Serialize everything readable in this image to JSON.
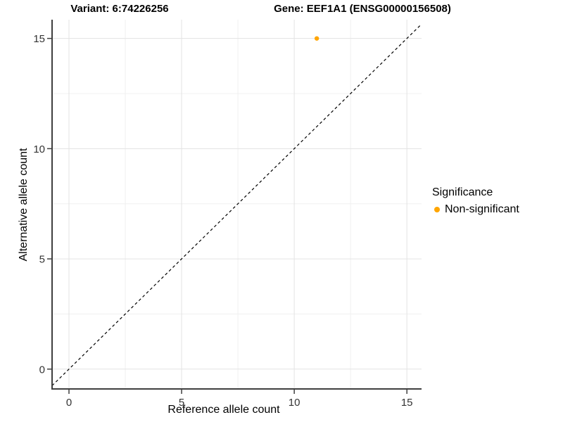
{
  "chart_data": {
    "type": "scatter",
    "titles": {
      "variant": "Variant: 6:74226256",
      "gene": "Gene: EEF1A1 (ENSG00000156508)"
    },
    "xlabel": "Reference allele count",
    "ylabel": "Alternative allele count",
    "xlim": [
      -0.75,
      15.65
    ],
    "ylim": [
      -0.9,
      15.85
    ],
    "x_ticks": [
      0,
      5,
      10,
      15
    ],
    "y_ticks": [
      0,
      5,
      10,
      15
    ],
    "x_minor": [
      2.5,
      7.5,
      12.5
    ],
    "y_minor": [
      2.5,
      7.5,
      12.5
    ],
    "grid": true,
    "series": [
      {
        "name": "Non-significant",
        "color": "#FFA500",
        "points": [
          {
            "x": 11,
            "y": 15
          }
        ]
      }
    ],
    "reference_line": {
      "style": "dashed",
      "slope": 1,
      "intercept": 0,
      "color": "#000000"
    },
    "legend": {
      "position": "right",
      "title": "Significance",
      "entries": [
        {
          "label": "Non-significant",
          "color": "#FFA500"
        }
      ]
    },
    "colors": {
      "grid_major": "#e3e3e3",
      "grid_minor": "#f0f0f0",
      "axis_line": "#3f3f3f",
      "tick_label": "#333333",
      "point": "#FFA500"
    }
  }
}
